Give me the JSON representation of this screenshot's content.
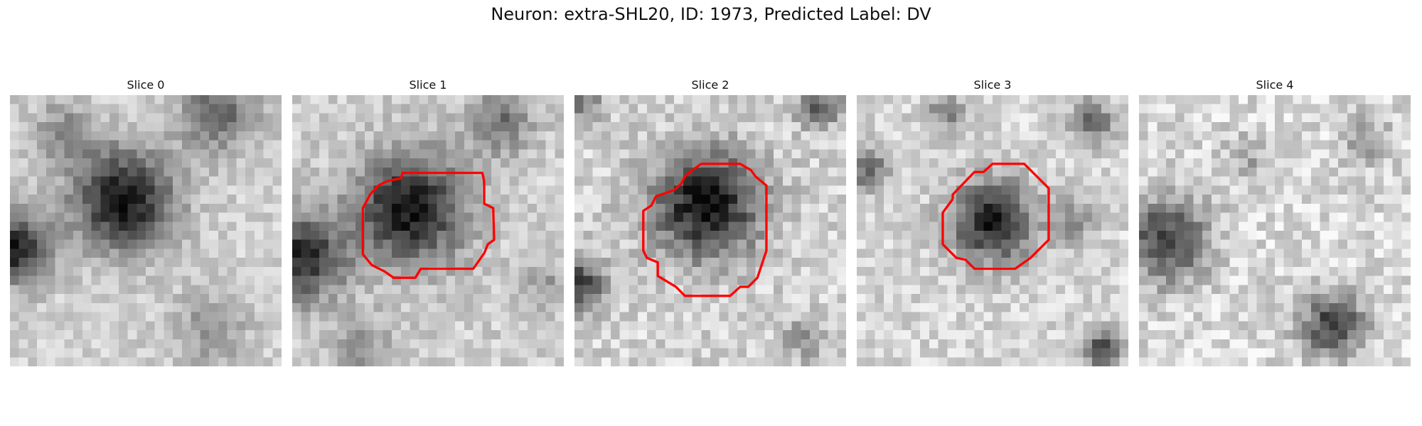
{
  "figure": {
    "title": "Neuron: extra-SHL20, ID: 1973, Predicted Label: DV"
  },
  "panels": [
    {
      "title": "Slice 0",
      "has_contour": false
    },
    {
      "title": "Slice 1",
      "has_contour": true
    },
    {
      "title": "Slice 2",
      "has_contour": true
    },
    {
      "title": "Slice 3",
      "has_contour": true
    },
    {
      "title": "Slice 4",
      "has_contour": false
    }
  ],
  "colors": {
    "contour": "#ff0000",
    "background": "#ffffff"
  }
}
